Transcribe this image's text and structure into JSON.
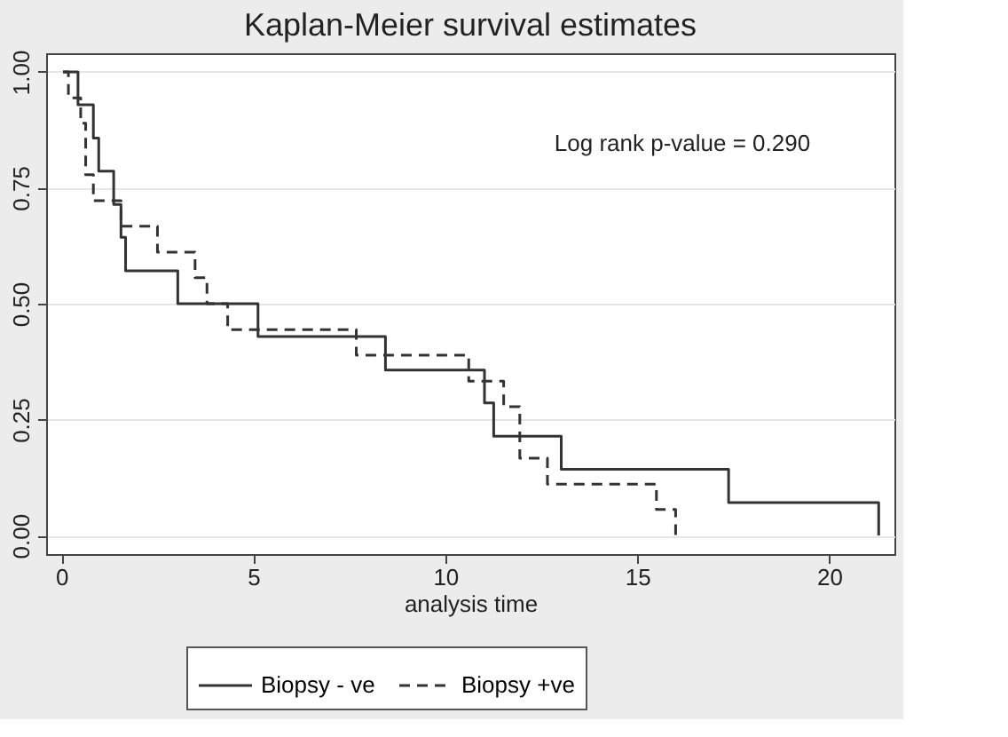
{
  "chart_data": {
    "type": "step",
    "title": "Kaplan-Meier survival estimates",
    "xlabel": "analysis time",
    "x": [
      0.04,
      0.43,
      0.83,
      0.97,
      1.36,
      1.55,
      1.67,
      3.03,
      5.12,
      8.44,
      11.02,
      11.26,
      13.02,
      17.38,
      21.29
    ],
    "series": [
      {
        "name": "Biopsy - ve",
        "color": "#333333",
        "line_style": "solid",
        "values": [
          1.0,
          0.929,
          0.857,
          0.786,
          0.714,
          0.643,
          0.571,
          0.5,
          0.429,
          0.357,
          0.286,
          0.214,
          0.143,
          0.071,
          0.0
        ]
      },
      {
        "name": "Biopsy +ve",
        "color": "#333333",
        "line_style": "dashed",
        "x": [
          0.04,
          0.18,
          0.5,
          0.63,
          0.83,
          1.55,
          2.5,
          3.48,
          3.79,
          4.33,
          7.68,
          10.61,
          11.52,
          11.94,
          12.66,
          15.5,
          16.0
        ],
        "values": [
          1.0,
          0.944,
          0.889,
          0.778,
          0.722,
          0.667,
          0.611,
          0.556,
          0.5,
          0.444,
          0.389,
          0.333,
          0.278,
          0.167,
          0.111,
          0.056,
          0.0
        ]
      }
    ],
    "xlim": [
      -0.4,
      21.7
    ],
    "xticks": [
      0,
      5,
      10,
      15,
      20
    ],
    "ylim": [
      -0.04,
      1.04
    ],
    "yticks": [
      {
        "value": 0,
        "label": "0.00"
      },
      {
        "value": 0.25,
        "label": "0.25"
      },
      {
        "value": 0.5,
        "label": "0.50"
      },
      {
        "value": 0.75,
        "label": "0.75"
      },
      {
        "value": 1,
        "label": "1.00"
      }
    ],
    "grid": "y",
    "legend": "bottom",
    "annotations": [
      "Log rank p-value = 0.290"
    ]
  }
}
